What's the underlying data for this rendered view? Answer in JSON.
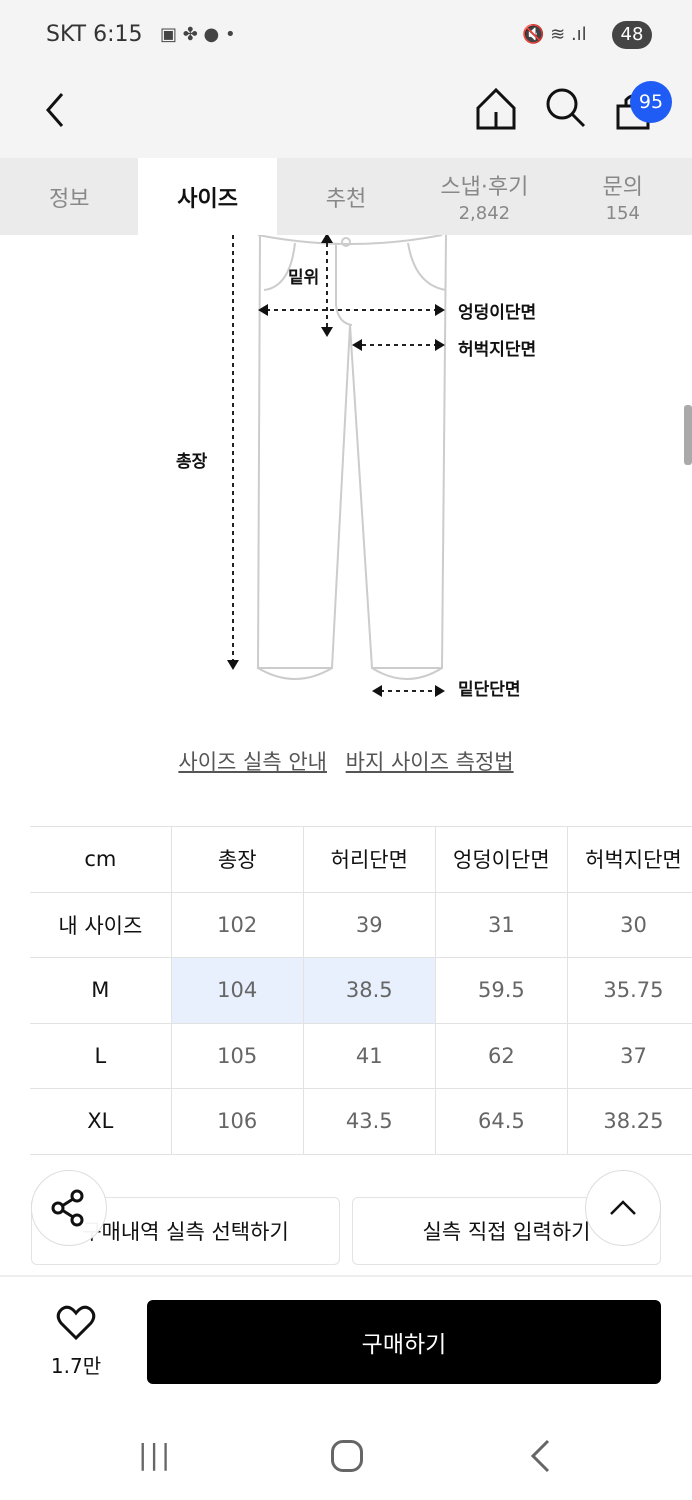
{
  "status": {
    "carrier_time": "SKT 6:15",
    "battery": "48"
  },
  "header": {
    "cart_count": "95"
  },
  "tabs": [
    {
      "label": "정보"
    },
    {
      "label": "사이즈"
    },
    {
      "label": "추천"
    },
    {
      "label": "스냅·후기",
      "count": "2,842"
    },
    {
      "label": "문의",
      "count": "154"
    }
  ],
  "diagram": {
    "rise": "밑위",
    "hip": "엉덩이단면",
    "thigh": "허벅지단면",
    "length": "총장",
    "hem": "밑단단면"
  },
  "links": {
    "guide": "사이즈 실측 안내",
    "measure": "바지 사이즈 측정법"
  },
  "table": {
    "headers": [
      "cm",
      "총장",
      "허리단면",
      "엉덩이단면",
      "허벅지단면"
    ],
    "rows": [
      [
        "내 사이즈",
        "102",
        "39",
        "31",
        "30"
      ],
      [
        "M",
        "104",
        "38.5",
        "59.5",
        "35.75"
      ],
      [
        "L",
        "105",
        "41",
        "62",
        "37"
      ],
      [
        "XL",
        "106",
        "43.5",
        "64.5",
        "38.25"
      ]
    ]
  },
  "buttons": {
    "history": "구매내역 실측 선택하기",
    "direct": "실측 직접 입력하기"
  },
  "bottom": {
    "likes": "1.7만",
    "buy": "구매하기"
  },
  "colors": {
    "badge": "#1f5cf5",
    "highlight": "#e8f0fd"
  }
}
